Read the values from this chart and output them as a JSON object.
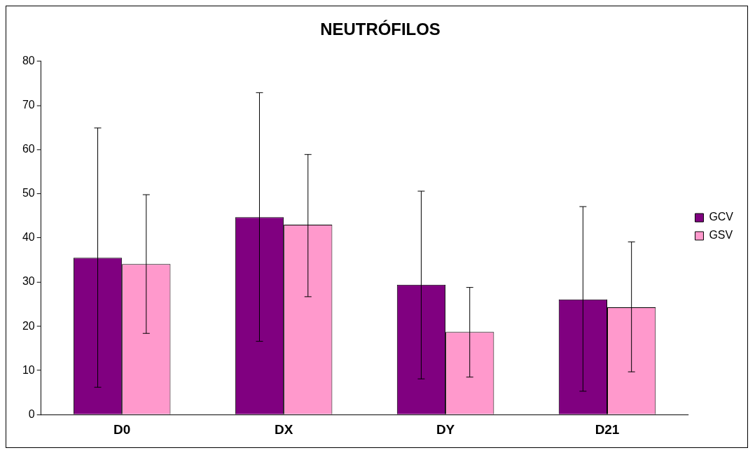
{
  "chart_data": {
    "type": "bar",
    "title": "NEUTRÓFILOS",
    "categories": [
      "D0",
      "DX",
      "DY",
      "D21"
    ],
    "series": [
      {
        "name": "GCV",
        "color": "#800080",
        "values": [
          35.5,
          44.7,
          29.4,
          26.1
        ],
        "errors": [
          [
            6.2,
            64.9
          ],
          [
            16.6,
            72.9
          ],
          [
            8.1,
            50.6
          ],
          [
            5.3,
            47.1
          ]
        ]
      },
      {
        "name": "GSV",
        "color": "#ff99cc",
        "values": [
          34.1,
          43.0,
          18.7,
          24.3
        ],
        "errors": [
          [
            18.4,
            49.8
          ],
          [
            26.7,
            58.9
          ],
          [
            8.5,
            28.8
          ],
          [
            9.7,
            39.1
          ]
        ]
      }
    ],
    "ylim": [
      0,
      80
    ],
    "yticks": [
      0,
      10,
      20,
      30,
      40,
      50,
      60,
      70,
      80
    ],
    "grid": false,
    "legend": "right"
  }
}
